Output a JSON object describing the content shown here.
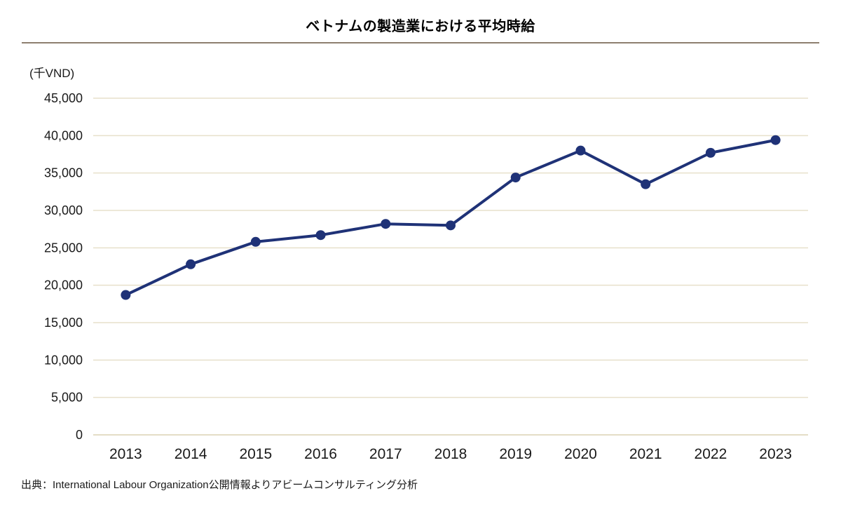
{
  "page": {
    "title": "ベトナムの製造業における平均時給",
    "unit_label": "(千VND)",
    "source": "出典：International Labour Organization公開情報よりアビームコンサルティング分析"
  },
  "chart_data": {
    "type": "line",
    "title": "ベトナムの製造業における平均時給",
    "ylabel_unit": "(千VND)",
    "categories": [
      "2013",
      "2014",
      "2015",
      "2016",
      "2017",
      "2018",
      "2019",
      "2020",
      "2021",
      "2022",
      "2023"
    ],
    "series": [
      {
        "name": "平均時給",
        "values": [
          18700,
          22800,
          25800,
          26700,
          28200,
          28000,
          34400,
          38000,
          33500,
          37700,
          39400
        ]
      }
    ],
    "ylim": [
      0,
      45000
    ],
    "ytick_step": 5000,
    "grid": "horizontal",
    "legend": "none",
    "marker": "circle",
    "colors": {
      "line": "#1f3277",
      "marker": "#1f3277",
      "gridline": "#e7e0cb",
      "zero_line": "#dcd2b3",
      "tick_text": "#1a1a1a",
      "title_rule": "#8e7f6f"
    }
  }
}
